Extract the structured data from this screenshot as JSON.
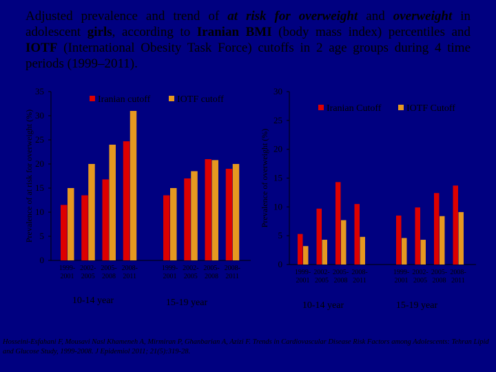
{
  "title": {
    "p1": "Adjusted prevalence and trend of ",
    "p2": "at risk for overweight",
    "p3": " and ",
    "p4": "overweight",
    "p5": " in adolescent ",
    "p6": "girls",
    "p7": ", according to ",
    "p8": "Iranian BMI",
    "p9": " (body mass index) percentiles and ",
    "p10": "IOTF",
    "p11": " (International Obesity Task Force) cutoffs in 2 age groups during 4 time periods (1999–2011)."
  },
  "citation": "Hosseini-Esfahani F, Mousavi Nasl Khameneh A, Mirmiran P, Ghanbarian A, Azizi F. Trends in Cardiovascular Disease Risk Factors among Adolescents: Tehran Lipid and Glucose Study, 1999-2008. J Epidemiol 2011; 21(5):319-28.",
  "colors": {
    "background": "#000080",
    "iranian": "#DD0000",
    "iotf": "#E69820"
  },
  "chart_data": [
    {
      "type": "bar",
      "ylabel": "Prevalence of at risk for overweight (%)",
      "ylim": [
        0,
        35
      ],
      "yticks": [
        0,
        5,
        10,
        15,
        20,
        25,
        30,
        35
      ],
      "legend": [
        "Iranian cutoff",
        "IOTF cutoff"
      ],
      "legend_position": "top",
      "groups": [
        {
          "label": "10-14 year",
          "periods": [
            "1999-\n2001",
            "2002-\n2005",
            "2005-\n2008",
            "2008-\n2011"
          ]
        },
        {
          "label": "15-19 year",
          "periods": [
            "1999-\n2001",
            "2002-\n2005",
            "2005-\n2008",
            "2008-\n2011"
          ]
        }
      ],
      "series": [
        {
          "name": "Iranian cutoff",
          "values": [
            [
              11.5,
              13.5,
              16.8,
              24.7
            ],
            [
              13.5,
              17.0,
              21.0,
              19.0
            ]
          ]
        },
        {
          "name": "IOTF cutoff",
          "values": [
            [
              15.0,
              20.0,
              24.0,
              31.0
            ],
            [
              15.0,
              18.5,
              20.8,
              20.0
            ]
          ]
        }
      ]
    },
    {
      "type": "bar",
      "ylabel": "Prevalence of overweight (%)",
      "ylim": [
        0,
        30
      ],
      "yticks": [
        0,
        5,
        10,
        15,
        20,
        25,
        30
      ],
      "legend": [
        "Iranian Cutoff",
        "IOTF Cutoff"
      ],
      "legend_position": "top",
      "groups": [
        {
          "label": "10-14 year",
          "periods": [
            "1999-\n2001",
            "2002-\n2005",
            "2005-\n2008",
            "2008-\n2011"
          ]
        },
        {
          "label": "15-19 year",
          "periods": [
            "1999-\n2001",
            "2002-\n2005",
            "2005-\n2008",
            "2008-\n2011"
          ]
        }
      ],
      "series": [
        {
          "name": "Iranian Cutoff",
          "values": [
            [
              5.3,
              9.7,
              14.3,
              10.5
            ],
            [
              8.5,
              9.9,
              12.4,
              13.7
            ]
          ]
        },
        {
          "name": "IOTF Cutoff",
          "values": [
            [
              3.2,
              4.3,
              7.7,
              4.8
            ],
            [
              4.6,
              4.3,
              8.4,
              9.1
            ]
          ]
        }
      ]
    }
  ]
}
